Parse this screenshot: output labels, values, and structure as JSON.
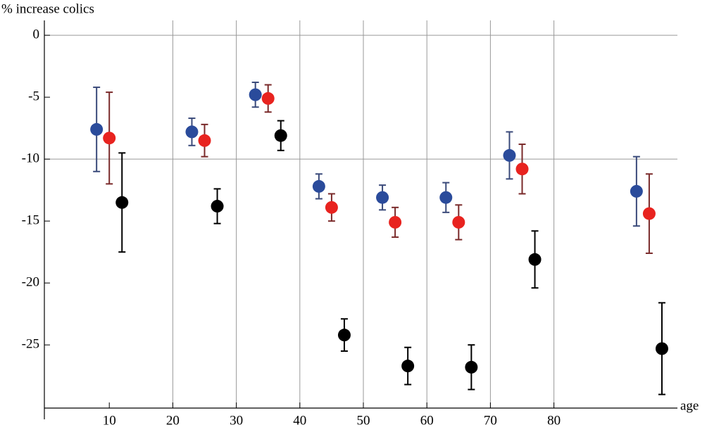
{
  "chart_data": {
    "type": "scatter",
    "y_label": "% increase colics",
    "x_label": "age",
    "xlim": [
      0,
      99
    ],
    "ylim": [
      -30.1,
      1.2
    ],
    "xticks": [
      10,
      20,
      30,
      40,
      50,
      60,
      70,
      80
    ],
    "yticks": [
      0,
      -5,
      -10,
      -15,
      -20,
      -25
    ],
    "xgrid": [
      20,
      30,
      40,
      50,
      60,
      70,
      80
    ],
    "ygrid": [
      0,
      -10
    ],
    "series": [
      {
        "color": "#2a4b9b",
        "error_color": "#3a4a7a",
        "x": [
          8,
          23,
          33,
          43,
          53,
          63,
          73,
          93
        ],
        "values": [
          -7.6,
          -7.8,
          -4.8,
          -12.2,
          -13.1,
          -13.1,
          -9.7,
          -12.6
        ],
        "errors": [
          3.4,
          1.1,
          1.0,
          1.0,
          1.0,
          1.2,
          1.9,
          2.8
        ]
      },
      {
        "color": "#e8231f",
        "error_color": "#7a2a2a",
        "x": [
          10,
          25,
          35,
          45,
          55,
          65,
          75,
          95
        ],
        "values": [
          -8.3,
          -8.5,
          -5.1,
          -13.9,
          -15.1,
          -15.1,
          -10.8,
          -14.4
        ],
        "errors": [
          3.7,
          1.3,
          1.1,
          1.1,
          1.2,
          1.4,
          2.0,
          3.2
        ]
      },
      {
        "color": "#000000",
        "error_color": "#000000",
        "x": [
          12,
          27,
          37,
          47,
          57,
          67,
          77,
          97
        ],
        "values": [
          -13.5,
          -13.8,
          -8.1,
          -24.2,
          -26.7,
          -26.8,
          -18.1,
          -25.3
        ],
        "errors": [
          4.0,
          1.4,
          1.2,
          1.3,
          1.5,
          1.8,
          2.3,
          3.7
        ]
      }
    ]
  }
}
